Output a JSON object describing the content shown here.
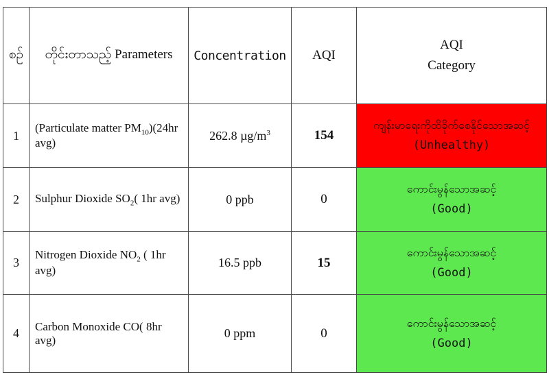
{
  "table": {
    "headers": {
      "no": "စဉ်",
      "parameter": "တိုင်းတာသည့် Parameters",
      "concentration": "Concentration",
      "aqi": "AQI",
      "category_line1": "AQI",
      "category_line2": "Category"
    },
    "rows": [
      {
        "no": "1",
        "param_main": "(Particulate matter PM",
        "param_sub": "10",
        "param_tail": ")(24hr avg)",
        "conc_value": "262.8 µg/m",
        "conc_sup": "3",
        "aqi": "154",
        "category_mm": "ကျန်းမာရေးကိုထိခိုက်စေနိုင်သောအဆင့်",
        "category_en": "(Unhealthy)",
        "category_color": "#ff0000"
      },
      {
        "no": "2",
        "param_main": "Sulphur Dioxide SO",
        "param_sub": "2",
        "param_tail": "( 1hr avg)",
        "conc_value": "0 ppb",
        "conc_sup": "",
        "aqi": "0",
        "category_mm": "ကောင်းမွန်သောအဆင့်",
        "category_en": "(Good)",
        "category_color": "#5ee84f"
      },
      {
        "no": "3",
        "param_main": "Nitrogen Dioxide NO",
        "param_sub": "2",
        "param_tail": " ( 1hr avg)",
        "conc_value": "16.5 ppb",
        "conc_sup": "",
        "aqi": "15",
        "category_mm": "ကောင်းမွန်သောအဆင့်",
        "category_en": "(Good)",
        "category_color": "#5ee84f"
      },
      {
        "no": "4",
        "param_main": "Carbon Monoxide CO( 8hr avg)",
        "param_sub": "",
        "param_tail": "",
        "conc_value": "0 ppm",
        "conc_sup": "",
        "aqi": "0",
        "category_mm": "ကောင်းမွန်သောအဆင့်",
        "category_en": "(Good)",
        "category_color": "#5ee84f"
      }
    ]
  }
}
